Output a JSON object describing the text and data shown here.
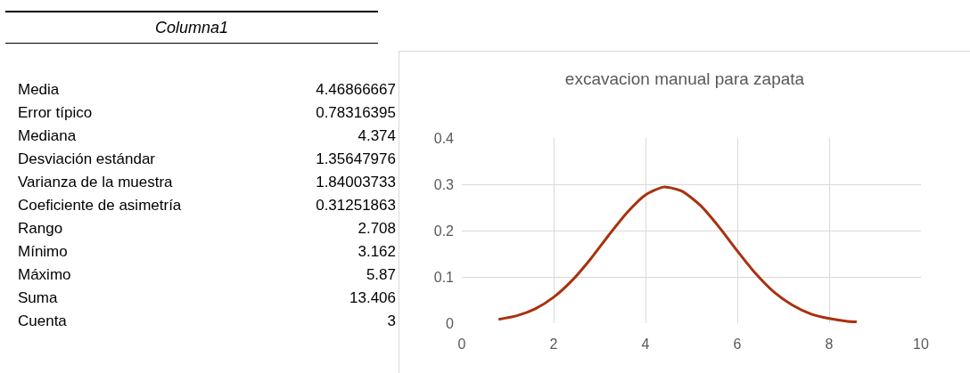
{
  "chart_data": [
    {
      "type": "other",
      "title": "Columna1",
      "categories": [
        "Media",
        "Error típico",
        "Mediana",
        "Desviación estándar",
        "Varianza de la muestra",
        "Coeficiente de asimetría",
        "Rango",
        "Mínimo",
        "Máximo",
        "Suma",
        "Cuenta"
      ],
      "values": [
        4.46866667,
        0.78316395,
        4.374,
        1.35647976,
        1.84003733,
        0.31251863,
        2.708,
        3.162,
        5.87,
        13.406,
        3
      ],
      "data_labels": true
    },
    {
      "type": "line",
      "title": "excavacion manual para zapata",
      "color": "#a9310f",
      "x": [
        0.8,
        1.2,
        1.6,
        2.0,
        2.4,
        2.8,
        3.2,
        3.6,
        4.0,
        4.4,
        4.8,
        5.2,
        5.6,
        6.0,
        6.4,
        6.8,
        7.2,
        7.6,
        8.0,
        8.4,
        8.6
      ],
      "values": [
        0.008,
        0.016,
        0.031,
        0.056,
        0.092,
        0.138,
        0.19,
        0.239,
        0.277,
        0.294,
        0.285,
        0.254,
        0.208,
        0.156,
        0.107,
        0.067,
        0.039,
        0.02,
        0.01,
        0.004,
        0.003
      ],
      "xlim": [
        0,
        10
      ],
      "xticks": [
        0,
        2,
        4,
        6,
        8,
        10
      ],
      "ylim": [
        0,
        0.4
      ],
      "yticks": [
        0,
        0.1,
        0.2,
        0.3,
        0.4
      ],
      "grid": true,
      "marker": "none",
      "line_style": "solid"
    }
  ]
}
